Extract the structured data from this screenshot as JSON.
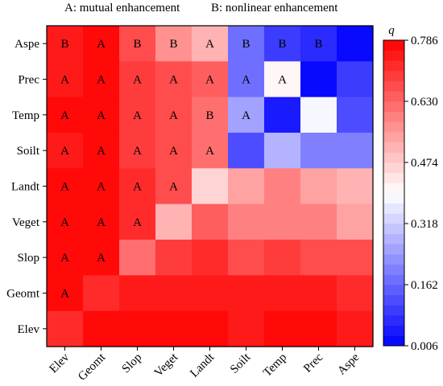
{
  "legend_text": {
    "a": "A: mutual enhancement",
    "b": "B: nonlinear enhancement"
  },
  "chart_data": {
    "type": "heatmap",
    "title": "",
    "x_labels": [
      "Elev",
      "Geomt",
      "Slop",
      "Veget",
      "Landt",
      "Soilt",
      "Temp",
      "Prec",
      "Aspe"
    ],
    "y_labels": [
      "Aspe",
      "Prec",
      "Temp",
      "Soilt",
      "Landt",
      "Veget",
      "Slop",
      "Geomt",
      "Elev"
    ],
    "values": [
      [
        0.75,
        0.76,
        0.66,
        0.56,
        0.5,
        0.17,
        0.1,
        0.08,
        0.01
      ],
      [
        0.75,
        0.76,
        0.69,
        0.66,
        0.64,
        0.18,
        0.42,
        0.03,
        0.09
      ],
      [
        0.76,
        0.76,
        0.7,
        0.66,
        0.63,
        0.26,
        0.05,
        0.38,
        0.11
      ],
      [
        0.75,
        0.76,
        0.7,
        0.66,
        0.63,
        0.13,
        0.28,
        0.19,
        0.2
      ],
      [
        0.77,
        0.76,
        0.71,
        0.67,
        0.45,
        0.54,
        0.6,
        0.53,
        0.51
      ],
      [
        0.76,
        0.76,
        0.71,
        0.52,
        0.65,
        0.58,
        0.6,
        0.58,
        0.53
      ],
      [
        0.76,
        0.77,
        0.62,
        0.69,
        0.72,
        0.68,
        0.7,
        0.67,
        0.66
      ],
      [
        0.76,
        0.71,
        0.75,
        0.75,
        0.75,
        0.74,
        0.75,
        0.75,
        0.72
      ],
      [
        0.73,
        0.78,
        0.76,
        0.76,
        0.78,
        0.75,
        0.78,
        0.76,
        0.74
      ]
    ],
    "annotations": [
      [
        "B",
        "A",
        "B",
        "B",
        "A",
        "B",
        "B",
        "B",
        ""
      ],
      [
        "A",
        "A",
        "A",
        "A",
        "A",
        "A",
        "A",
        "",
        ""
      ],
      [
        "A",
        "A",
        "A",
        "A",
        "B",
        "A",
        "",
        "",
        ""
      ],
      [
        "A",
        "A",
        "A",
        "A",
        "A",
        "",
        "",
        "",
        ""
      ],
      [
        "A",
        "A",
        "A",
        "A",
        "",
        "",
        "",
        "",
        ""
      ],
      [
        "A",
        "A",
        "A",
        "",
        "",
        "",
        "",
        "",
        ""
      ],
      [
        "A",
        "A",
        "",
        "",
        "",
        "",
        "",
        "",
        ""
      ],
      [
        "A",
        "",
        "",
        "",
        "",
        "",
        "",
        "",
        ""
      ],
      [
        "",
        "",
        "",
        "",
        "",
        "",
        "",
        "",
        ""
      ]
    ],
    "colorbar": {
      "label": "q",
      "min": 0.006,
      "max": 0.786,
      "ticks": [
        "0.786",
        "0.630",
        "0.474",
        "0.318",
        "0.162",
        "0.006"
      ],
      "tick_values": [
        0.786,
        0.63,
        0.474,
        0.318,
        0.162,
        0.006
      ],
      "colors": {
        "low": "#0000ff",
        "mid": "#ffffff",
        "high": "#ff0000"
      },
      "steps": 30
    },
    "grid": false
  }
}
